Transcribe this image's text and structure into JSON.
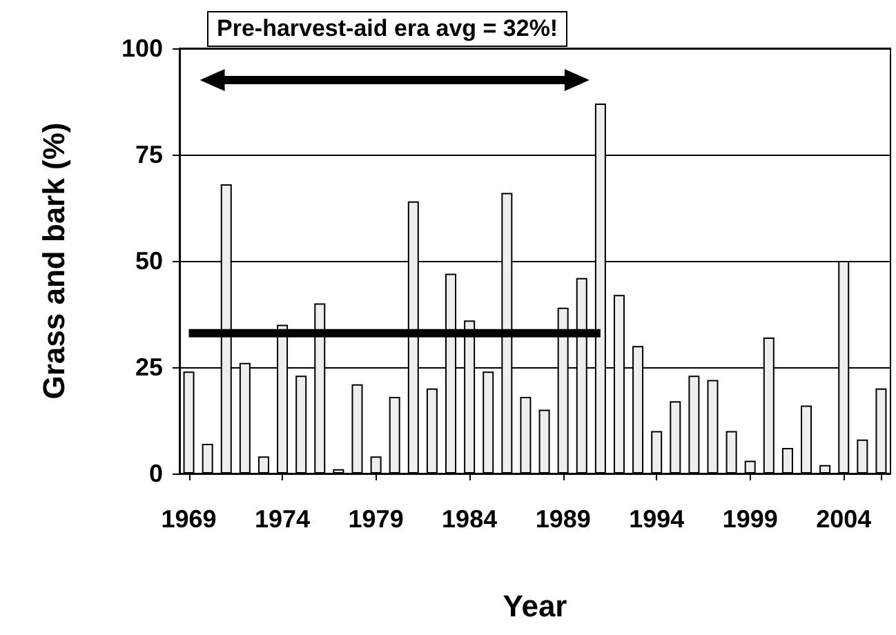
{
  "chart_data": {
    "type": "bar",
    "xlabel": "Year",
    "ylabel": "Grass and bark (%)",
    "annotations": [
      "Pre-harvest-aid era avg = 32%!"
    ],
    "categories": [
      "1969",
      null,
      null,
      null,
      null,
      "1974",
      null,
      null,
      null,
      null,
      "1979",
      null,
      null,
      null,
      null,
      "1984",
      null,
      null,
      null,
      null,
      "1989",
      null,
      null,
      null,
      null,
      "1994",
      null,
      null,
      null,
      null,
      "1999",
      null,
      null,
      null,
      null,
      "2004",
      null,
      null
    ],
    "series": [
      {
        "color": "#eeeeee",
        "values": [
          24,
          7,
          68,
          26,
          4,
          35,
          23,
          40,
          1,
          21,
          4,
          18,
          64,
          20,
          47,
          36,
          24,
          66,
          18,
          15,
          39,
          46,
          87,
          42,
          30,
          10,
          17,
          23,
          22,
          10,
          3,
          32,
          6,
          16,
          2,
          50,
          8,
          20
        ]
      },
      {
        "type": "line",
        "color": "#000000",
        "values": [
          33,
          33,
          33,
          33,
          33,
          33,
          33,
          33,
          33,
          33,
          33,
          33,
          33,
          33,
          33,
          33,
          33,
          33,
          33,
          33,
          33,
          33,
          33,
          null,
          null,
          null,
          null,
          null,
          null,
          null,
          null,
          null,
          null,
          null,
          null,
          null,
          null,
          null
        ]
      }
    ],
    "ylim": [
      0,
      100
    ],
    "yticks": [
      0,
      25,
      50,
      75,
      100
    ],
    "grid": "y"
  }
}
